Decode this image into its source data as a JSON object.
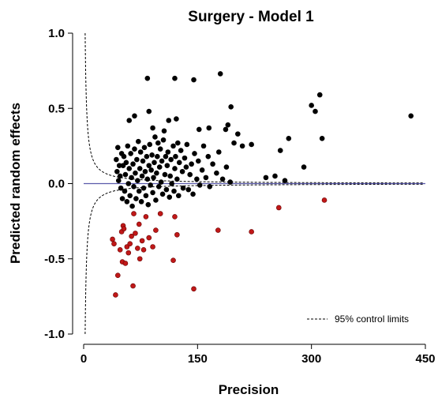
{
  "chart_data": {
    "type": "scatter",
    "title": "Surgery - Model 1",
    "xlabel": "Precision",
    "ylabel": "Predicted random effects",
    "xlim": [
      0,
      450
    ],
    "ylim": [
      -1.0,
      1.0
    ],
    "x_ticks": [
      0,
      150,
      300,
      450
    ],
    "x_tick_labels": [
      "0",
      "150",
      "300",
      "450"
    ],
    "y_ticks": [
      -1.0,
      -0.5,
      0.0,
      0.5,
      1.0
    ],
    "y_tick_labels": [
      "-1.0",
      "-0.5",
      "0.0",
      "0.5",
      "1.0"
    ],
    "grid": false,
    "reference_line": {
      "y": 0,
      "color": "#5a5aaa"
    },
    "control_limits": {
      "label": "95% control limits",
      "style": "dashed",
      "z": 1.96
    },
    "legend": {
      "position": "bottom-right"
    },
    "colors": {
      "within_limits": "#000000",
      "outside_limits": "#c01818",
      "outlier_edge": "#6a0000"
    },
    "series": [
      {
        "category": "within limits",
        "points": [
          [
            84,
            0.7
          ],
          [
            120,
            0.7
          ],
          [
            145,
            0.69
          ],
          [
            180,
            0.73
          ],
          [
            60,
            0.42
          ],
          [
            67,
            0.45
          ],
          [
            86,
            0.48
          ],
          [
            91,
            0.37
          ],
          [
            106,
            0.35
          ],
          [
            112,
            0.42
          ],
          [
            122,
            0.43
          ],
          [
            152,
            0.36
          ],
          [
            165,
            0.37
          ],
          [
            194,
            0.51
          ],
          [
            198,
            0.27
          ],
          [
            190,
            0.39
          ],
          [
            187,
            0.36
          ],
          [
            203,
            0.33
          ],
          [
            209,
            0.25
          ],
          [
            221,
            0.26
          ],
          [
            259,
            0.22
          ],
          [
            270,
            0.3
          ],
          [
            300,
            0.52
          ],
          [
            305,
            0.48
          ],
          [
            311,
            0.59
          ],
          [
            314,
            0.3
          ],
          [
            431,
            0.45
          ],
          [
            43,
            0.16
          ],
          [
            44,
            0.08
          ],
          [
            45,
            0.24
          ],
          [
            46,
            0.02
          ],
          [
            47,
            0.12
          ],
          [
            48,
            0.05
          ],
          [
            49,
            -0.03
          ],
          [
            50,
            0.2
          ],
          [
            51,
            -0.1
          ],
          [
            52,
            0.12
          ],
          [
            53,
            0.18
          ],
          [
            54,
            -0.05
          ],
          [
            55,
            0.06
          ],
          [
            56,
            0.14
          ],
          [
            57,
            -0.12
          ],
          [
            58,
            0.25
          ],
          [
            59,
            0.0
          ],
          [
            60,
            0.1
          ],
          [
            61,
            -0.08
          ],
          [
            62,
            0.2
          ],
          [
            63,
            0.04
          ],
          [
            64,
            -0.15
          ],
          [
            65,
            0.13
          ],
          [
            66,
            -0.02
          ],
          [
            67,
            0.23
          ],
          [
            68,
            0.07
          ],
          [
            69,
            -0.1
          ],
          [
            70,
            0.16
          ],
          [
            71,
            0.02
          ],
          [
            72,
            0.28
          ],
          [
            73,
            -0.05
          ],
          [
            74,
            0.1
          ],
          [
            75,
            0.21
          ],
          [
            76,
            -0.12
          ],
          [
            77,
            0.05
          ],
          [
            78,
            0.15
          ],
          [
            79,
            -0.03
          ],
          [
            80,
            0.24
          ],
          [
            81,
            0.08
          ],
          [
            82,
            -0.08
          ],
          [
            83,
            0.18
          ],
          [
            84,
            0.03
          ],
          [
            85,
            -0.14
          ],
          [
            86,
            0.12
          ],
          [
            87,
            0.26
          ],
          [
            88,
            -0.01
          ],
          [
            89,
            0.09
          ],
          [
            90,
            0.19
          ],
          [
            91,
            -0.06
          ],
          [
            92,
            0.04
          ],
          [
            93,
            0.14
          ],
          [
            94,
            0.31
          ],
          [
            95,
            -0.11
          ],
          [
            96,
            0.07
          ],
          [
            97,
            0.18
          ],
          [
            98,
            0.27
          ],
          [
            99,
            -0.02
          ],
          [
            100,
            0.11
          ],
          [
            101,
            0.23
          ],
          [
            102,
            0.01
          ],
          [
            103,
            0.15
          ],
          [
            104,
            -0.07
          ],
          [
            105,
            0.29
          ],
          [
            107,
            0.06
          ],
          [
            108,
            0.18
          ],
          [
            109,
            -0.04
          ],
          [
            110,
            0.12
          ],
          [
            111,
            0.21
          ],
          [
            113,
            -0.09
          ],
          [
            114,
            0.05
          ],
          [
            115,
            0.16
          ],
          [
            116,
            0.0
          ],
          [
            118,
            0.25
          ],
          [
            119,
            -0.05
          ],
          [
            120,
            0.1
          ],
          [
            121,
            0.18
          ],
          [
            123,
            0.03
          ],
          [
            124,
            0.27
          ],
          [
            125,
            -0.08
          ],
          [
            126,
            0.14
          ],
          [
            128,
            0.22
          ],
          [
            130,
            0.08
          ],
          [
            131,
            -0.03
          ],
          [
            133,
            0.17
          ],
          [
            135,
            0.11
          ],
          [
            136,
            0.26
          ],
          [
            138,
            -0.04
          ],
          [
            140,
            0.06
          ],
          [
            142,
            0.13
          ],
          [
            144,
            -0.07
          ],
          [
            146,
            0.2
          ],
          [
            149,
            0.03
          ],
          [
            151,
            0.15
          ],
          [
            153,
            -0.01
          ],
          [
            156,
            0.09
          ],
          [
            158,
            0.25
          ],
          [
            161,
            0.04
          ],
          [
            164,
            0.18
          ],
          [
            166,
            -0.02
          ],
          [
            170,
            0.13
          ],
          [
            175,
            0.07
          ],
          [
            178,
            0.21
          ],
          [
            183,
            0.03
          ],
          [
            188,
            0.11
          ],
          [
            193,
            0.01
          ],
          [
            240,
            0.04
          ],
          [
            252,
            0.05
          ],
          [
            265,
            0.02
          ],
          [
            290,
            0.11
          ]
        ]
      },
      {
        "category": "outside limits",
        "points": [
          [
            38,
            -0.37
          ],
          [
            40,
            -0.4
          ],
          [
            42,
            -0.74
          ],
          [
            45,
            -0.61
          ],
          [
            48,
            -0.44
          ],
          [
            50,
            -0.32
          ],
          [
            51,
            -0.52
          ],
          [
            52,
            -0.28
          ],
          [
            53,
            -0.3
          ],
          [
            55,
            -0.53
          ],
          [
            57,
            -0.42
          ],
          [
            59,
            -0.46
          ],
          [
            61,
            -0.4
          ],
          [
            63,
            -0.35
          ],
          [
            65,
            -0.68
          ],
          [
            66,
            -0.2
          ],
          [
            68,
            -0.33
          ],
          [
            71,
            -0.43
          ],
          [
            73,
            -0.27
          ],
          [
            74,
            -0.5
          ],
          [
            77,
            -0.38
          ],
          [
            79,
            -0.44
          ],
          [
            82,
            -0.22
          ],
          [
            86,
            -0.36
          ],
          [
            91,
            -0.42
          ],
          [
            95,
            -0.31
          ],
          [
            101,
            -0.2
          ],
          [
            118,
            -0.51
          ],
          [
            120,
            -0.22
          ],
          [
            123,
            -0.34
          ],
          [
            145,
            -0.7
          ],
          [
            177,
            -0.31
          ],
          [
            221,
            -0.32
          ],
          [
            257,
            -0.16
          ],
          [
            317,
            -0.11
          ]
        ]
      }
    ]
  }
}
